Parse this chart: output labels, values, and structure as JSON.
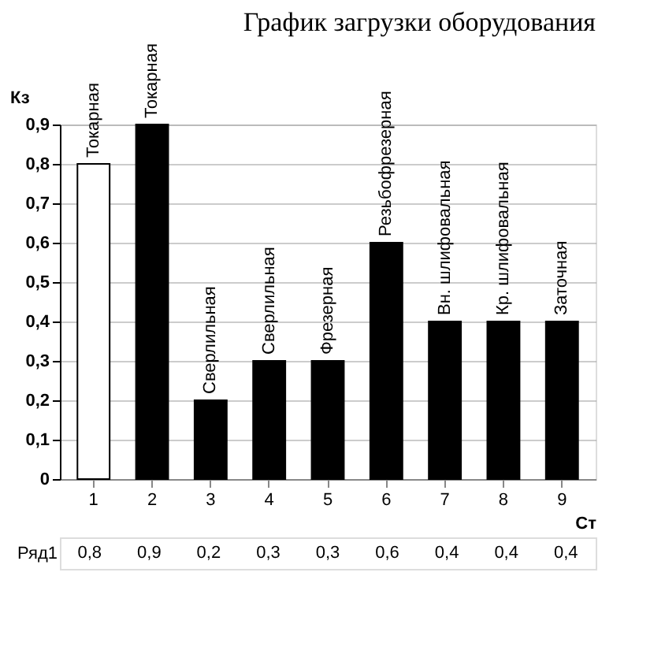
{
  "chart_data": {
    "type": "bar",
    "title": "График загрузки оборудования",
    "xlabel": "Ст",
    "ylabel": "Кз",
    "categories": [
      "1",
      "2",
      "3",
      "4",
      "5",
      "6",
      "7",
      "8",
      "9"
    ],
    "series": [
      {
        "name": "Ряд1",
        "colors": [
          "#ffffff",
          "#000000",
          "#000000",
          "#000000",
          "#000000",
          "#000000",
          "#000000",
          "#000000",
          "#000000"
        ],
        "values": [
          0.8,
          0.9,
          0.2,
          0.3,
          0.3,
          0.6,
          0.4,
          0.4,
          0.4
        ],
        "value_labels": [
          "0,8",
          "0,9",
          "0,2",
          "0,3",
          "0,3",
          "0,6",
          "0,4",
          "0,4",
          "0,4"
        ]
      }
    ],
    "ylim": [
      0,
      0.9
    ],
    "yticks": [
      {
        "value": 0,
        "label": "0"
      },
      {
        "value": 0.1,
        "label": "0,1"
      },
      {
        "value": 0.2,
        "label": "0,2"
      },
      {
        "value": 0.3,
        "label": "0,3"
      },
      {
        "value": 0.4,
        "label": "0,4"
      },
      {
        "value": 0.5,
        "label": "0,5"
      },
      {
        "value": 0.6,
        "label": "0,6"
      },
      {
        "value": 0.7,
        "label": "0,7"
      },
      {
        "value": 0.8,
        "label": "0,8"
      },
      {
        "value": 0.9,
        "label": "0,9"
      }
    ],
    "grid": "y",
    "annotations": [
      {
        "text": "Токарная",
        "x": "1",
        "y": 0.8
      },
      {
        "text": "Токарная",
        "x": "2",
        "y": 0.9
      },
      {
        "text": "Сверлильная",
        "x": "3",
        "y": 0.2
      },
      {
        "text": "Сверлильная",
        "x": "4",
        "y": 0.3
      },
      {
        "text": "Фрезерная",
        "x": "5",
        "y": 0.3
      },
      {
        "text": "Резьбофрезерная",
        "x": "6",
        "y": 0.6
      },
      {
        "text": "Вн. шлифовальная",
        "x": "7",
        "y": 0.4
      },
      {
        "text": "Кр. шлифовальная",
        "x": "8",
        "y": 0.4
      },
      {
        "text": "Заточная",
        "x": "9",
        "y": 0.4
      }
    ]
  }
}
